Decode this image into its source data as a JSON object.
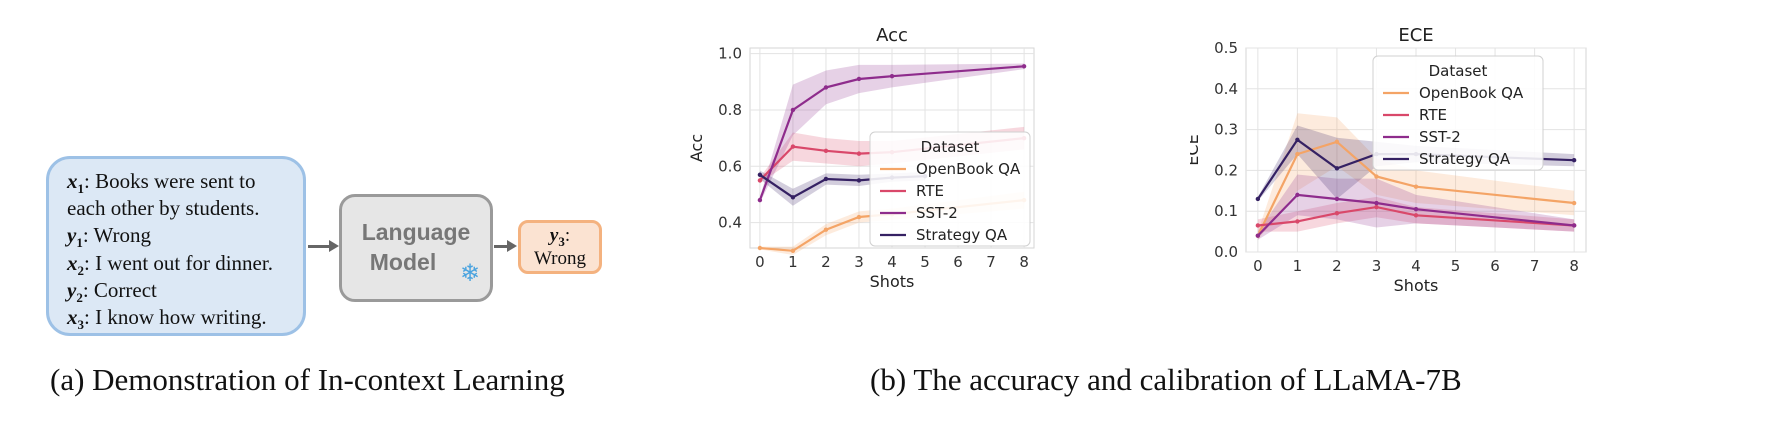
{
  "panel_a": {
    "lines": [
      {
        "var": "x",
        "sub": "1",
        "text": ": Books were sent to"
      },
      {
        "var": "",
        "sub": "",
        "text": "each other by students."
      },
      {
        "var": "y",
        "sub": "1",
        "text": ": Wrong"
      },
      {
        "var": "x",
        "sub": "2",
        "text": ": I went out for dinner."
      },
      {
        "var": "y",
        "sub": "2",
        "text": ": Correct"
      },
      {
        "var": "x",
        "sub": "3",
        "text": ": I know how writing."
      }
    ],
    "model_line1": "Language",
    "model_line2": "Model",
    "model_icon": "snowflake-icon",
    "output_var": "y",
    "output_sub": "3",
    "output_colon": ":",
    "output_text": "Wrong",
    "caption": "(a)  Demonstration of In-context Learning"
  },
  "panel_b": {
    "caption": "(b)  The accuracy and calibration of LLaMA-7B"
  },
  "chart_data": [
    {
      "type": "line",
      "title": "Acc",
      "xlabel": "Shots",
      "ylabel": "Acc",
      "xlim": [
        -0.3,
        8.3
      ],
      "ylim": [
        0.31,
        1.02
      ],
      "xticks": [
        0,
        1,
        2,
        3,
        4,
        5,
        6,
        7,
        8
      ],
      "yticks": [
        0.4,
        0.6,
        0.8,
        1.0
      ],
      "ytick_labels": [
        "0.4",
        "0.6",
        "0.8",
        "1.0"
      ],
      "grid": true,
      "legend": {
        "title": "Dataset",
        "location": "lower-right"
      },
      "series": [
        {
          "name": "OpenBook QA",
          "color": "#f4a466",
          "x": [
            0,
            1,
            2,
            3,
            4,
            8
          ],
          "y": [
            0.31,
            0.3,
            0.375,
            0.42,
            0.43,
            0.48
          ],
          "lower": [
            0.305,
            0.285,
            0.355,
            0.4,
            0.41,
            0.45
          ],
          "upper": [
            0.315,
            0.315,
            0.395,
            0.44,
            0.45,
            0.51
          ]
        },
        {
          "name": "RTE",
          "color": "#d9486a",
          "x": [
            0,
            1,
            2,
            3,
            4,
            8
          ],
          "y": [
            0.55,
            0.67,
            0.655,
            0.645,
            0.65,
            0.7
          ],
          "lower": [
            0.54,
            0.62,
            0.61,
            0.6,
            0.61,
            0.66
          ],
          "upper": [
            0.56,
            0.72,
            0.7,
            0.69,
            0.69,
            0.74
          ]
        },
        {
          "name": "SST-2",
          "color": "#8e2c8c",
          "x": [
            0,
            1,
            2,
            3,
            4,
            8
          ],
          "y": [
            0.48,
            0.8,
            0.88,
            0.91,
            0.92,
            0.955
          ],
          "lower": [
            0.47,
            0.71,
            0.82,
            0.86,
            0.88,
            0.945
          ],
          "upper": [
            0.49,
            0.89,
            0.94,
            0.96,
            0.96,
            0.965
          ]
        },
        {
          "name": "Strategy QA",
          "color": "#352163",
          "x": [
            0,
            1,
            2,
            3,
            4,
            5
          ],
          "y": [
            0.57,
            0.49,
            0.555,
            0.55,
            0.56,
            0.565
          ],
          "lower": [
            0.555,
            0.46,
            0.535,
            0.53,
            0.545,
            0.55
          ],
          "upper": [
            0.585,
            0.52,
            0.575,
            0.57,
            0.575,
            0.58
          ]
        }
      ]
    },
    {
      "type": "line",
      "title": "ECE",
      "xlabel": "Shots",
      "ylabel": "ECE",
      "xlim": [
        -0.3,
        8.3
      ],
      "ylim": [
        0,
        0.5
      ],
      "xticks": [
        0,
        1,
        2,
        3,
        4,
        5,
        6,
        7,
        8
      ],
      "yticks": [
        0.0,
        0.1,
        0.2,
        0.3,
        0.4,
        0.5
      ],
      "ytick_labels": [
        "0.0",
        "0.1",
        "0.2",
        "0.3",
        "0.4",
        "0.5"
      ],
      "grid": true,
      "legend": {
        "title": "Dataset",
        "location": "upper-right"
      },
      "series": [
        {
          "name": "OpenBook QA",
          "color": "#f4a466",
          "x": [
            0,
            1,
            2,
            3,
            4,
            8
          ],
          "y": [
            0.04,
            0.24,
            0.27,
            0.185,
            0.16,
            0.12
          ],
          "lower": [
            0.03,
            0.15,
            0.21,
            0.14,
            0.12,
            0.09
          ],
          "upper": [
            0.05,
            0.34,
            0.33,
            0.23,
            0.2,
            0.15
          ]
        },
        {
          "name": "RTE",
          "color": "#d9486a",
          "x": [
            0,
            1,
            2,
            3,
            4,
            8
          ],
          "y": [
            0.065,
            0.075,
            0.095,
            0.11,
            0.09,
            0.065
          ],
          "lower": [
            0.05,
            0.05,
            0.07,
            0.085,
            0.07,
            0.05
          ],
          "upper": [
            0.08,
            0.1,
            0.12,
            0.135,
            0.11,
            0.08
          ]
        },
        {
          "name": "SST-2",
          "color": "#8e2c8c",
          "x": [
            0,
            1,
            2,
            3,
            4,
            8
          ],
          "y": [
            0.04,
            0.14,
            0.13,
            0.12,
            0.105,
            0.065
          ],
          "lower": [
            0.03,
            0.09,
            0.08,
            0.06,
            0.07,
            0.05
          ],
          "upper": [
            0.05,
            0.19,
            0.18,
            0.18,
            0.14,
            0.08
          ]
        },
        {
          "name": "Strategy QA",
          "color": "#352163",
          "x": [
            0,
            1,
            2,
            3,
            4,
            8
          ],
          "y": [
            0.13,
            0.275,
            0.205,
            0.24,
            0.24,
            0.225
          ],
          "lower": [
            0.125,
            0.24,
            0.13,
            0.21,
            0.22,
            0.21
          ],
          "upper": [
            0.135,
            0.31,
            0.28,
            0.27,
            0.26,
            0.24
          ]
        }
      ]
    }
  ]
}
